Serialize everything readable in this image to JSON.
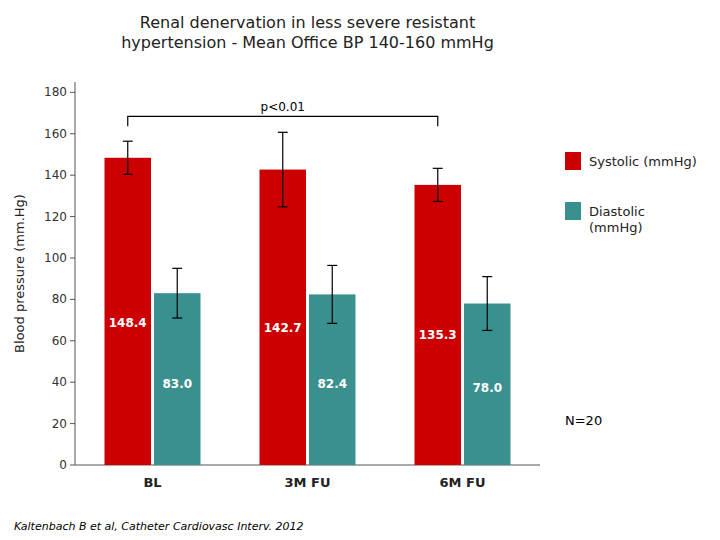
{
  "chart_data": {
    "type": "bar",
    "title": "Renal denervation in less severe resistant\nhypertension -  Mean Office BP 140-160 mmHg",
    "categories": [
      "BL",
      "3M FU",
      "6M FU"
    ],
    "series": [
      {
        "name": "Systolic (mmHg)",
        "color": "#CC0000",
        "values": [
          148.4,
          142.7,
          135.3
        ],
        "errors": [
          8,
          18,
          8
        ]
      },
      {
        "name": "Diastolic\n(mmHg)",
        "color": "#3A8F8F",
        "values": [
          83.0,
          82.4,
          78.0
        ],
        "value_labels": [
          "83.0",
          "82.4",
          "78.0"
        ],
        "errors": [
          12,
          14,
          13
        ]
      }
    ],
    "ylim": [
      0,
      185
    ],
    "yticks": [
      0,
      20,
      40,
      60,
      80,
      100,
      120,
      140,
      160,
      180
    ],
    "ylabel": "Blood pressure (mm.Hg)",
    "data_labels": true,
    "grid": false,
    "legend": "right",
    "annotations": [
      "p<0.01",
      "N=20"
    ],
    "footnote": "Kaltenbach B et al, Catheter Cardiovasc Interv. 2012"
  }
}
